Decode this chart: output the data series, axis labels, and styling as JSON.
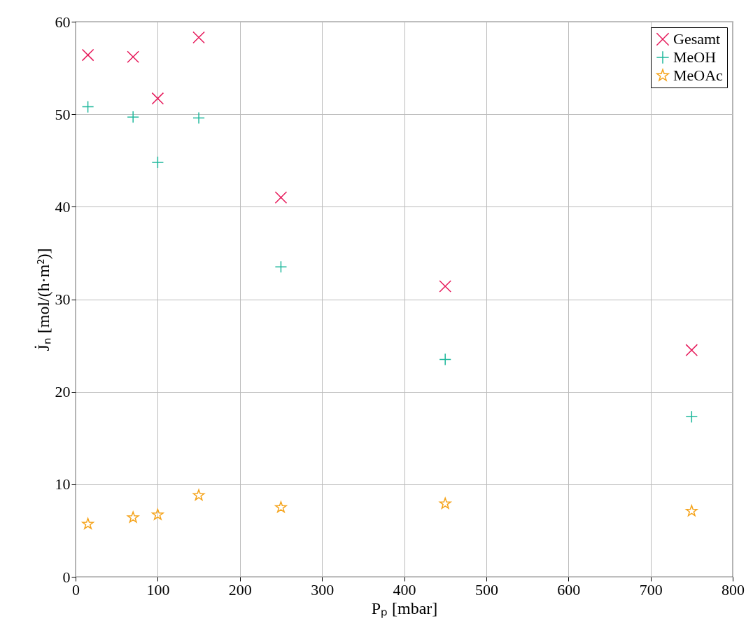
{
  "chart_data": {
    "type": "scatter",
    "xlabel": "Pₚ [mbar]",
    "ylabel": "J̇ₙ [mol/(h·m²)]",
    "x": [
      15,
      70,
      100,
      150,
      250,
      450,
      750
    ],
    "series": [
      {
        "name": "Gesamt",
        "color": "#e6195a",
        "marker": "cross",
        "values": [
          56.4,
          56.2,
          51.7,
          58.3,
          41.0,
          31.4,
          24.5
        ]
      },
      {
        "name": "MeOH",
        "color": "#1fb89c",
        "marker": "plus",
        "values": [
          50.8,
          49.7,
          44.8,
          49.6,
          33.5,
          23.5,
          17.3
        ]
      },
      {
        "name": "MeOAc",
        "color": "#f5a31a",
        "marker": "star",
        "values": [
          5.7,
          6.4,
          6.7,
          8.8,
          7.5,
          7.9,
          7.1
        ]
      }
    ],
    "xlim": [
      0,
      800
    ],
    "xticks": [
      0,
      100,
      200,
      300,
      400,
      500,
      600,
      700,
      800
    ],
    "ylim": [
      0,
      60
    ],
    "yticks": [
      0,
      10,
      20,
      30,
      40,
      50,
      60
    ],
    "grid": true,
    "legend": "top right"
  }
}
